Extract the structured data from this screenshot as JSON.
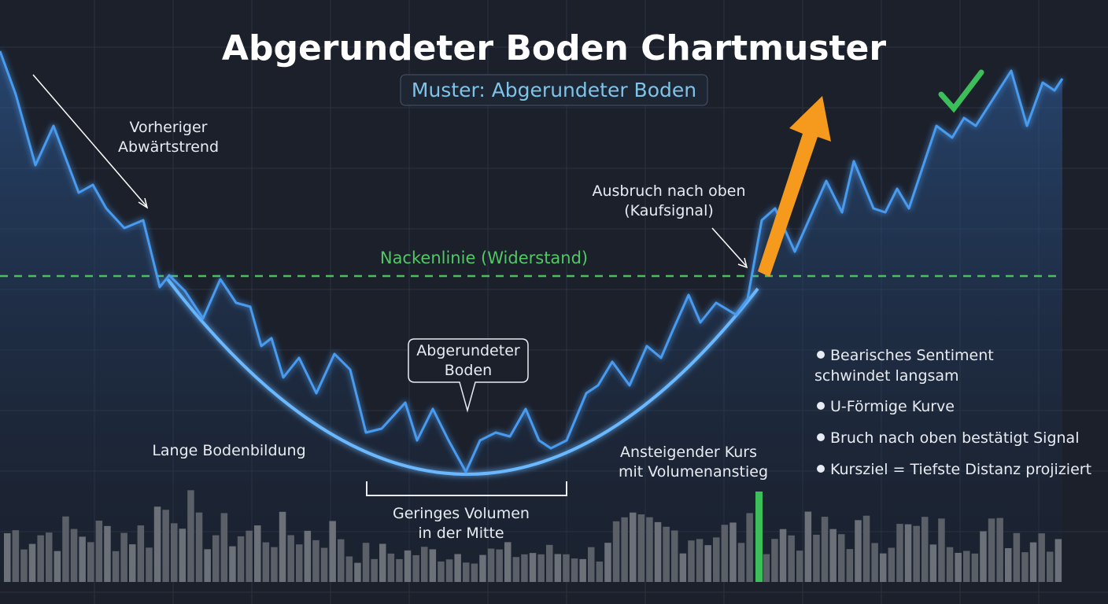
{
  "header": {
    "title": "Abgerundeter Boden Chartmuster",
    "subtitle": "Muster: Abgerundeter Boden"
  },
  "annotations": {
    "prior_trend": [
      "Vorheriger",
      "Abwärtstrend"
    ],
    "breakout": [
      "Ausbruch nach oben",
      "(Kaufsignal)"
    ],
    "neckline": "Nackenlinie (Widerstand)",
    "bottom_callout": [
      "Abgerundeter",
      "Boden"
    ],
    "long_bottom": "Lange Bodenbildung",
    "low_volume": [
      "Geringes Volumen",
      "in der Mitte"
    ],
    "rising": [
      "Ansteigender Kurs",
      "mit Volumenanstieg"
    ]
  },
  "bullets": [
    "Bearisches Sentiment",
    "schwindet langsam",
    "U-Förmige Kurve",
    "Bruch nach oben bestätigt Signal",
    "Kursziel = Tiefste Distanz projiziert"
  ]
}
